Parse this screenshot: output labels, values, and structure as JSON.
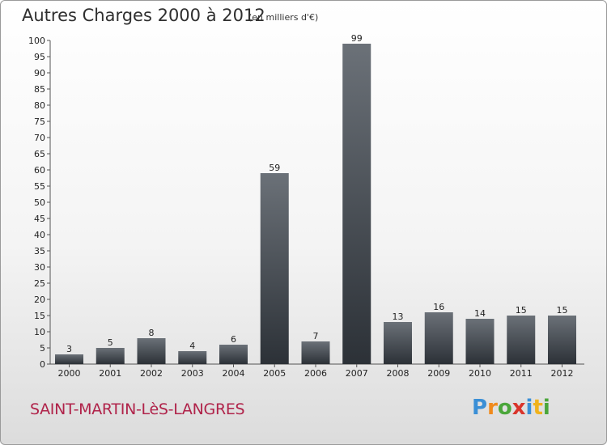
{
  "header": {
    "title": "Autres Charges 2000 à 2012",
    "subtitle": "(en milliers d'€)"
  },
  "footer": {
    "commune": "SAINT-MARTIN-LèS-LANGRES",
    "logo_letters": [
      "P",
      "r",
      "o",
      "x",
      "i",
      "t",
      "i"
    ],
    "logo_colors": [
      "#3a8fd6",
      "#f08a1c",
      "#4aa63a",
      "#d9342b",
      "#3a8fd6",
      "#f0b21c",
      "#4aa63a"
    ]
  },
  "colors": {
    "bar_top": "#6b7178",
    "bar_bottom": "#2c3137",
    "axis": "#555555"
  },
  "chart_data": {
    "type": "bar",
    "title": "Autres Charges 2000 à 2012",
    "subtitle": "(en milliers d'€)",
    "xlabel": "",
    "ylabel": "",
    "categories": [
      "2000",
      "2001",
      "2002",
      "2003",
      "2004",
      "2005",
      "2006",
      "2007",
      "2008",
      "2009",
      "2010",
      "2011",
      "2012"
    ],
    "values": [
      3,
      5,
      8,
      4,
      6,
      59,
      7,
      99,
      13,
      16,
      14,
      15,
      15
    ],
    "ylim": [
      0,
      100
    ],
    "yticks": [
      0,
      5,
      10,
      15,
      20,
      25,
      30,
      35,
      40,
      45,
      50,
      55,
      60,
      65,
      70,
      75,
      80,
      85,
      90,
      95,
      100
    ],
    "grid": false,
    "data_labels": true
  }
}
